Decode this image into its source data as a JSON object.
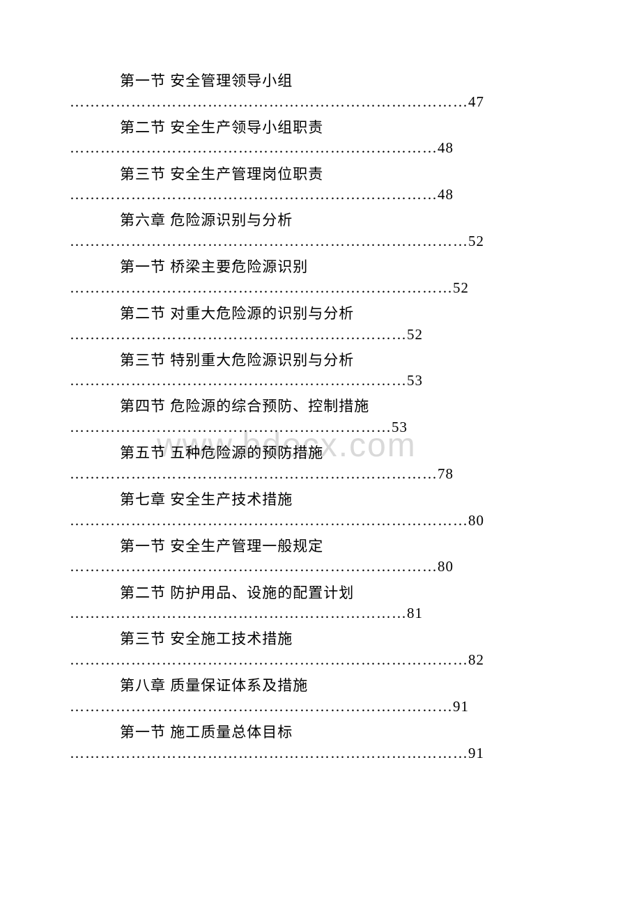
{
  "watermark": "www.bdocx.com",
  "colors": {
    "text": "#000000",
    "background": "#ffffff",
    "watermark": "#d9d9d9"
  },
  "typography": {
    "body_fontsize": 21,
    "watermark_fontsize": 48,
    "font_family": "SimSun"
  },
  "toc_entries": [
    {
      "title": "第一节 安全管理领导小组",
      "page": "47",
      "dots": "……………………………………………………………………"
    },
    {
      "title": "第二节 安全生产领导小组职责",
      "page": "48",
      "dots": "………………………………………………………………"
    },
    {
      "title": "第三节 安全生产管理岗位职责",
      "page": "48",
      "dots": "………………………………………………………………"
    },
    {
      "title": "第六章 危险源识别与分析",
      "page": "52",
      "dots": "……………………………………………………………………"
    },
    {
      "title": "第一节 桥梁主要危险源识别",
      "page": "52",
      "dots": "…………………………………………………………………"
    },
    {
      "title": "第二节 对重大危险源的识别与分析",
      "page": "52",
      "dots": "…………………………………………………………"
    },
    {
      "title": "第三节 特别重大危险源识别与分析",
      "page": "53",
      "dots": "…………………………………………………………"
    },
    {
      "title": "第四节 危险源的综合预防、控制措施",
      "page": "53",
      "dots": "………………………………………………………"
    },
    {
      "title": "第五节 五种危险源的预防措施",
      "page": "78",
      "dots": "………………………………………………………………"
    },
    {
      "title": "第七章 安全生产技术措施",
      "page": "80",
      "dots": "……………………………………………………………………"
    },
    {
      "title": "第一节 安全生产管理一般规定",
      "page": "80",
      "dots": "………………………………………………………………"
    },
    {
      "title": "第二节 防护用品、设施的配置计划",
      "page": "81",
      "dots": "…………………………………………………………"
    },
    {
      "title": "第三节 安全施工技术措施",
      "page": "82",
      "dots": "……………………………………………………………………"
    },
    {
      "title": "第八章 质量保证体系及措施",
      "page": "91",
      "dots": "…………………………………………………………………"
    },
    {
      "title": "第一节 施工质量总体目标",
      "page": "91",
      "dots": "……………………………………………………………………"
    }
  ]
}
